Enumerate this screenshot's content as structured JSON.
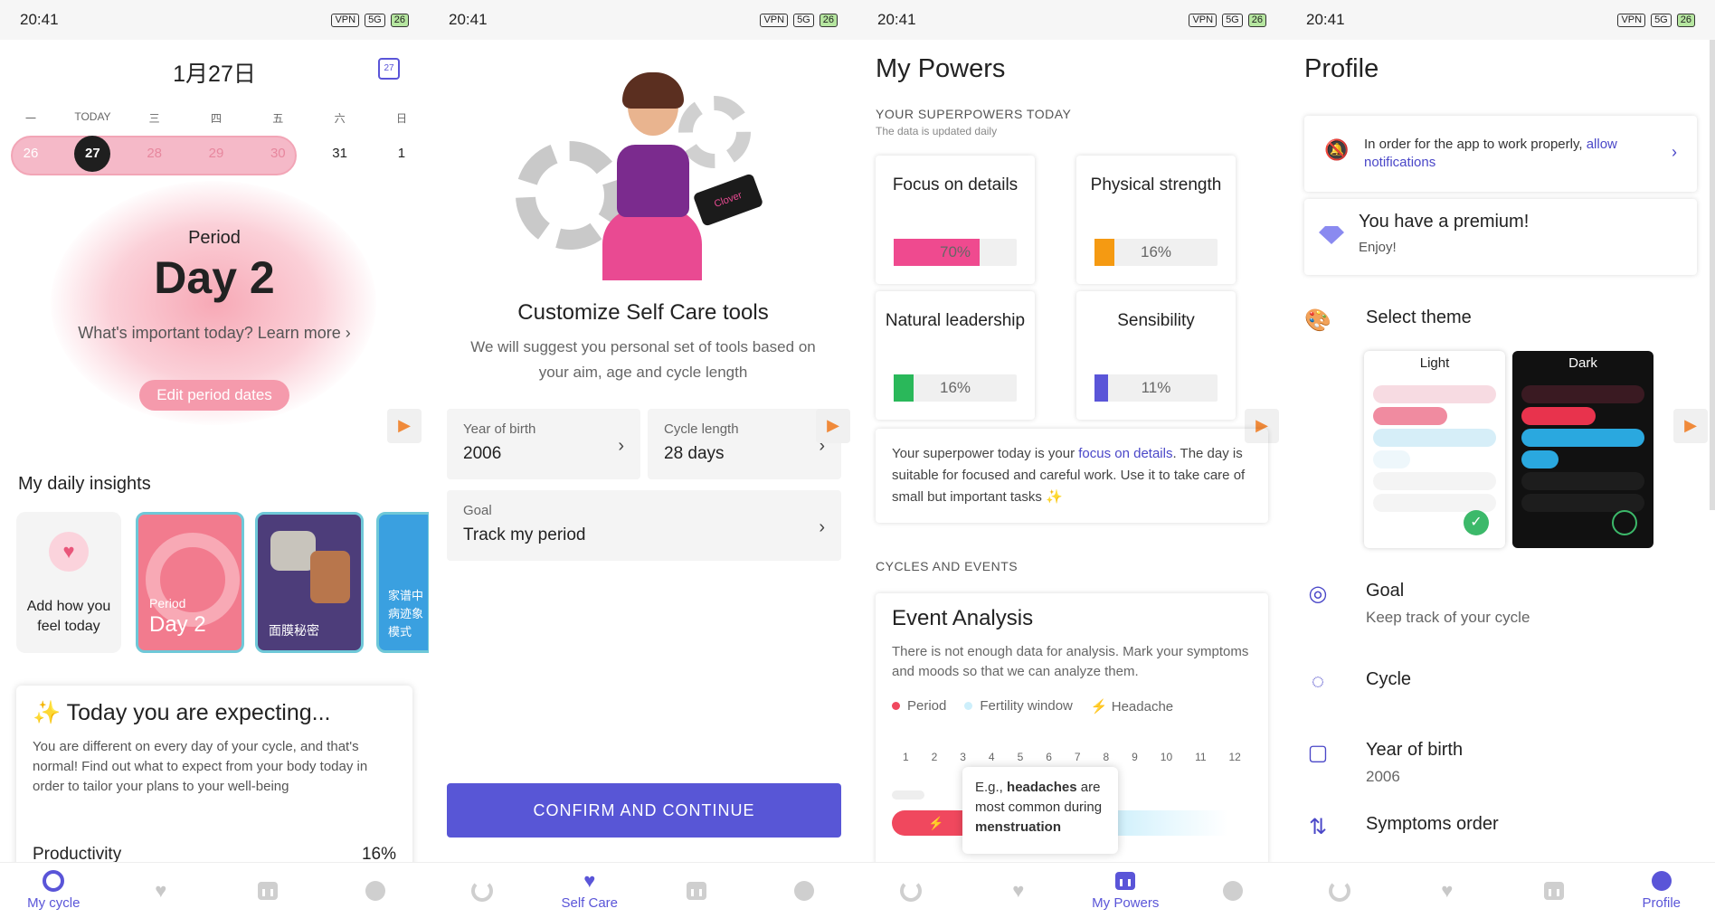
{
  "status": {
    "time": "20:41",
    "icons": [
      "VPN",
      "5G",
      "26"
    ]
  },
  "nav": {
    "cycle": "My cycle",
    "selfcare": "Self Care",
    "powers": "My Powers",
    "profile": "Profile"
  },
  "s1": {
    "date": "1月27日",
    "cal_day": "27",
    "weekdays": [
      "一",
      "TODAY",
      "三",
      "四",
      "五",
      "六",
      "日"
    ],
    "days": [
      "26",
      "27",
      "28",
      "29",
      "30",
      "31",
      "1"
    ],
    "period_label": "Period",
    "period_day": "Day 2",
    "important": "What's important today? Learn more",
    "edit_btn": "Edit period dates",
    "insights_title": "My daily insights",
    "card0": "Add how you feel today",
    "card1_a": "Period",
    "card1_b": "Day 2",
    "card2": "面膜秘密",
    "card3": "家谱中 病迹象 模式",
    "exp_title": "✨ Today you are expecting...",
    "exp_text": "You are different on every day of your cycle, and that's normal! Find out what to expect from your body today in order to tailor your plans to your well-being",
    "prod_label": "Productivity",
    "prod_val": "16%"
  },
  "s2": {
    "tablet_text": "Clover",
    "title": "Customize Self Care tools",
    "sub": "We will suggest you personal set of tools based on your aim, age and cycle length",
    "yob_label": "Year of birth",
    "yob_val": "2006",
    "cyc_label": "Cycle length",
    "cyc_val": "28 days",
    "goal_label": "Goal",
    "goal_val": "Track my period",
    "confirm": "CONFIRM AND CONTINUE"
  },
  "s3": {
    "title": "My Powers",
    "sup": "YOUR SUPERPOWERS TODAY",
    "upd": "The data is updated daily",
    "powers": [
      {
        "name": "Focus on details",
        "pct": "70%",
        "fill": 0.7,
        "color": "#ef4a8f"
      },
      {
        "name": "Physical strength",
        "pct": "16%",
        "fill": 0.16,
        "color": "#f59a12"
      },
      {
        "name": "Natural leadership",
        "pct": "16%",
        "fill": 0.16,
        "color": "#2ab85a"
      },
      {
        "name": "Sensibility",
        "pct": "11%",
        "fill": 0.11,
        "color": "#5a55d8"
      }
    ],
    "desc_a": "Your superpower today is your ",
    "desc_b": "focus on details",
    "desc_c": ". The day is suitable for focused and careful work. Use it to take care of small but important tasks ✨",
    "ce": "CYCLES AND EVENTS",
    "ea_title": "Event Analysis",
    "ea_text": "There is not enough data for analysis. Mark your symptoms and moods so that we can analyze them.",
    "leg": [
      "Period",
      "Fertility window",
      "Headache"
    ],
    "axis": [
      "1",
      "2",
      "3",
      "4",
      "5",
      "6",
      "7",
      "8",
      "9",
      "10",
      "11",
      "12"
    ],
    "tip_a": "E.g., ",
    "tip_b": "headaches",
    "tip_c": " are most common during ",
    "tip_d": "menstruation"
  },
  "s4": {
    "title": "Profile",
    "notif_a": "In order for the app to work properly, ",
    "notif_b": "allow notifications",
    "prem_t": "You have a premium!",
    "prem_s": "Enjoy!",
    "theme": "Select theme",
    "light": "Light",
    "dark": "Dark",
    "goal": "Goal",
    "goal_s": "Keep track of your cycle",
    "cycle": "Cycle",
    "yob": "Year of birth",
    "yob_s": "2006",
    "symptoms": "Symptoms order"
  },
  "colors": {
    "accent": "#5a55d8",
    "pink": "#f59aac"
  }
}
